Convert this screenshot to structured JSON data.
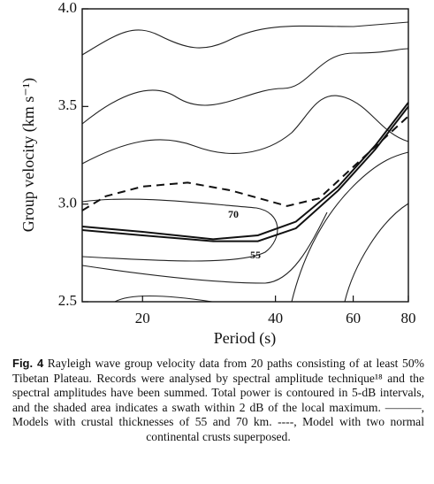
{
  "chart_data": {
    "type": "line",
    "xlabel": "Period (s)",
    "ylabel": "Group velocity (km s⁻¹)",
    "xscale": "log",
    "xlim": [
      14.6,
      80
    ],
    "xticks": [
      20,
      40,
      60,
      80
    ],
    "ylim": [
      2.5,
      4.0
    ],
    "yticks": [
      {
        "value": 2.5,
        "label": "2.5"
      },
      {
        "value": 3.0,
        "label": "3.0"
      },
      {
        "value": 3.5,
        "label": "3.5"
      },
      {
        "value": 4.0,
        "label": "4.0"
      }
    ],
    "series": [
      {
        "line_style": "solid",
        "color": "#111",
        "x": [
          14.6,
          20,
          28.9,
          36.5,
          44.5,
          55.5,
          67.3,
          80
        ],
        "values": [
          2.885,
          2.858,
          2.82,
          2.84,
          2.91,
          3.09,
          3.3,
          3.52
        ]
      },
      {
        "line_style": "solid",
        "color": "#111",
        "x": [
          14.6,
          20,
          28.9,
          36.5,
          44.5,
          55.5,
          67.3,
          80
        ],
        "values": [
          2.867,
          2.84,
          2.81,
          2.81,
          2.876,
          3.07,
          3.28,
          3.5
        ]
      },
      {
        "line_style": "dashed",
        "color": "#111",
        "x": [
          14.6,
          16.5,
          20,
          25.3,
          31.7,
          42.5,
          50.3,
          61.3,
          80
        ],
        "values": [
          2.967,
          3.04,
          3.09,
          3.11,
          3.07,
          2.99,
          3.03,
          3.21,
          3.45
        ]
      }
    ],
    "annotations": [
      "70",
      "55"
    ]
  },
  "caption": {
    "label": "Fig. 4",
    "text": "Rayleigh wave group velocity data from 20 paths consisting of at least 50% Tibetan Plateau. Records were analysed by spectral amplitude technique¹⁸ and the spectral amplitudes have been summed. Total power is contoured in 5-dB intervals, and the shaded area indicates a swath within 2 dB of the local maximum. ———, Models with crustal thicknesses of 55 and 70 km. ----, Model with two normal continental crusts superposed."
  }
}
